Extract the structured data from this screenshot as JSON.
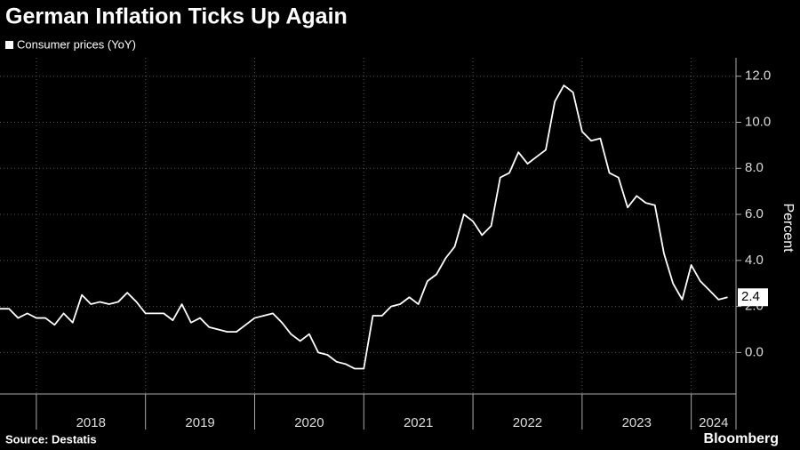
{
  "chart_data": {
    "type": "line",
    "title": "German Inflation Ticks Up Again",
    "source": "Source: Destatis",
    "brand": "Bloomberg",
    "y_label": "Percent",
    "grid": true,
    "series": [
      {
        "name": "Consumer prices (YoY)",
        "color": "#ffffff",
        "x": [
          2017.667,
          2017.75,
          2017.833,
          2017.917,
          2018,
          2018.083,
          2018.167,
          2018.25,
          2018.333,
          2018.417,
          2018.5,
          2018.583,
          2018.667,
          2018.75,
          2018.833,
          2018.917,
          2019,
          2019.083,
          2019.167,
          2019.25,
          2019.333,
          2019.417,
          2019.5,
          2019.583,
          2019.667,
          2019.75,
          2019.833,
          2019.917,
          2020,
          2020.083,
          2020.167,
          2020.25,
          2020.333,
          2020.417,
          2020.5,
          2020.583,
          2020.667,
          2020.75,
          2020.833,
          2020.917,
          2021,
          2021.083,
          2021.167,
          2021.25,
          2021.333,
          2021.417,
          2021.5,
          2021.583,
          2021.667,
          2021.75,
          2021.833,
          2021.917,
          2022,
          2022.083,
          2022.167,
          2022.25,
          2022.333,
          2022.417,
          2022.5,
          2022.583,
          2022.667,
          2022.75,
          2022.833,
          2022.917,
          2023,
          2023.083,
          2023.167,
          2023.25,
          2023.333,
          2023.417,
          2023.5,
          2023.583,
          2023.667,
          2023.75,
          2023.833,
          2023.917,
          2024,
          2024.083,
          2024.167,
          2024.25,
          2024.333
        ],
        "values": [
          1.9,
          1.9,
          1.5,
          1.7,
          1.5,
          1.5,
          1.2,
          1.7,
          1.3,
          2.5,
          2.1,
          2.2,
          2.1,
          2.2,
          2.6,
          2.2,
          1.7,
          1.7,
          1.7,
          1.4,
          2.1,
          1.3,
          1.5,
          1.1,
          1.0,
          0.9,
          0.9,
          1.2,
          1.5,
          1.6,
          1.7,
          1.3,
          0.8,
          0.5,
          0.8,
          0.0,
          -0.1,
          -0.4,
          -0.5,
          -0.7,
          -0.7,
          1.6,
          1.6,
          2.0,
          2.1,
          2.4,
          2.1,
          3.1,
          3.4,
          4.1,
          4.6,
          6.0,
          5.7,
          5.1,
          5.5,
          7.6,
          7.8,
          8.7,
          8.2,
          8.5,
          8.8,
          10.9,
          11.6,
          11.3,
          9.6,
          9.2,
          9.3,
          7.8,
          7.6,
          6.3,
          6.8,
          6.5,
          6.4,
          4.3,
          3.0,
          2.3,
          3.8,
          3.1,
          2.7,
          2.3,
          2.4
        ]
      }
    ],
    "xlim": [
      2017.667,
      2024.41
    ],
    "xticks": [
      {
        "value": 2018,
        "label": "2018"
      },
      {
        "value": 2019,
        "label": "2019"
      },
      {
        "value": 2020,
        "label": "2020"
      },
      {
        "value": 2021,
        "label": "2021"
      },
      {
        "value": 2022,
        "label": "2022"
      },
      {
        "value": 2023,
        "label": "2023"
      },
      {
        "value": 2024,
        "label": "2024"
      }
    ],
    "ylim": [
      -1.8,
      12.8
    ],
    "yticks": [
      {
        "value": 0,
        "label": "0.0"
      },
      {
        "value": 2,
        "label": "2.0"
      },
      {
        "value": 4,
        "label": "4.0"
      },
      {
        "value": 6,
        "label": "6.0"
      },
      {
        "value": 8,
        "label": "8.0"
      },
      {
        "value": 10,
        "label": "10.0"
      },
      {
        "value": 12,
        "label": "12.0"
      }
    ]
  }
}
